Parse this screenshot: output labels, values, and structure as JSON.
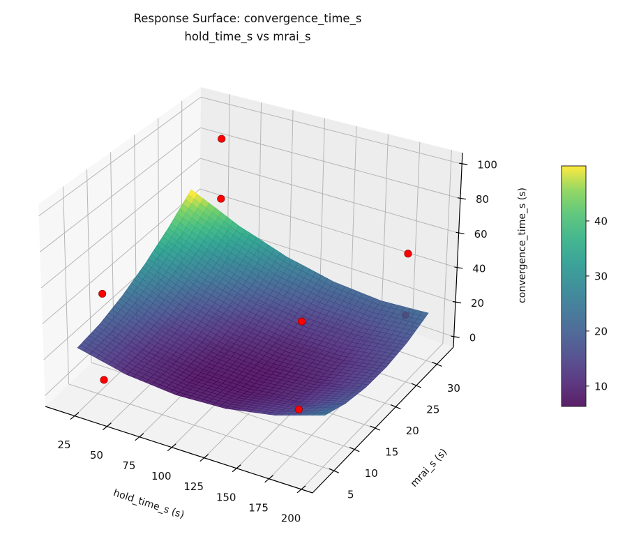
{
  "chart_data": {
    "type": "surface",
    "title": [
      "Response Surface: convergence_time_s",
      "hold_time_s vs mrai_s"
    ],
    "x_axis": {
      "label": "hold_time_s (s)",
      "range": [
        2.4,
        208.6
      ],
      "ticks": [
        "25",
        "50",
        "75",
        "100",
        "125",
        "150",
        "175",
        "200"
      ],
      "tick_values": [
        25,
        50,
        75,
        100,
        125,
        150,
        175,
        200
      ]
    },
    "y_axis": {
      "label": "mrai_s (s)",
      "range": [
        -0.2,
        34
      ],
      "ticks": [
        "5",
        "10",
        "15",
        "20",
        "25",
        "30"
      ],
      "tick_values": [
        5,
        10,
        15,
        20,
        25,
        30
      ]
    },
    "z_axis": {
      "label": "convergence_time_s (s)",
      "range": [
        -6,
        106.5
      ],
      "ticks": [
        "0",
        "20",
        "40",
        "60",
        "80",
        "100"
      ],
      "tick_values": [
        0,
        20,
        40,
        60,
        80,
        100
      ]
    },
    "grid": true,
    "colormap": "viridis",
    "colorbar": {
      "range": [
        6.3,
        50
      ],
      "ticks": [
        "10",
        "20",
        "30",
        "40"
      ],
      "tick_values": [
        10,
        20,
        30,
        40
      ],
      "placement": "right"
    },
    "surface": {
      "hold_time_s": [
        10,
        48,
        86,
        124,
        162,
        200
      ],
      "mrai_s": [
        5,
        10,
        15,
        20,
        25,
        30
      ],
      "convergence_time_s": [
        [
          16.5,
          18.5,
          23.1,
          30.1,
          39.5,
          51.5
        ],
        [
          10.2,
          10.8,
          13.8,
          19.3,
          27.3,
          37.8
        ],
        [
          7.8,
          6.9,
          8.4,
          12.5,
          19.0,
          28.0
        ],
        [
          9.2,
          6.8,
          6.9,
          9.4,
          14.5,
          22.0
        ],
        [
          14.4,
          10.5,
          9.1,
          10.2,
          13.8,
          19.8
        ],
        [
          23.5,
          18.1,
          15.3,
          14.9,
          16.9,
          21.5
        ]
      ]
    },
    "observed_points": {
      "color": "#ff0000",
      "points": [
        {
          "hold_time_s": 30,
          "mrai_s": 31,
          "convergence_time_s": 86
        },
        {
          "hold_time_s": 30,
          "mrai_s": 31,
          "convergence_time_s": 48
        },
        {
          "hold_time_s": 30,
          "mrai_s": 5,
          "convergence_time_s": 52
        },
        {
          "hold_time_s": 30,
          "mrai_s": 5,
          "convergence_time_s": 3
        },
        {
          "hold_time_s": 180,
          "mrai_s": 5,
          "convergence_time_s": 72
        },
        {
          "hold_time_s": 180,
          "mrai_s": 5,
          "convergence_time_s": 22
        },
        {
          "hold_time_s": 182,
          "mrai_s": 30,
          "convergence_time_s": 52
        },
        {
          "hold_time_s": 182,
          "mrai_s": 30,
          "convergence_time_s": 16
        }
      ]
    }
  }
}
